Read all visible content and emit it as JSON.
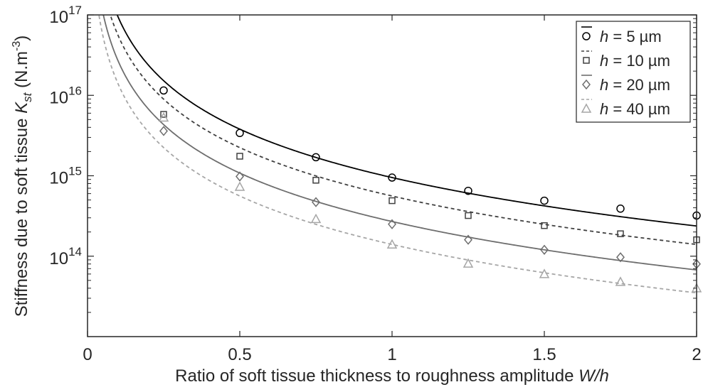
{
  "chart_data": {
    "type": "scatter",
    "xlabel_main": "Ratio of soft tissue thickness to roughness amplitude ",
    "xlabel_italic": "W/h",
    "ylabel_main": "Stiffness due to soft tissue ",
    "ylabel_symbol": "K",
    "ylabel_subscript": "st",
    "ylabel_unit": " (N.m",
    "ylabel_unit_exp": "-3",
    "ylabel_close": ")",
    "xlim": [
      0,
      2
    ],
    "ylim": [
      10000000000000.0,
      1e+17
    ],
    "yscale": "log",
    "x_ticks": [
      {
        "value": 0,
        "label": "0"
      },
      {
        "value": 0.5,
        "label": "0.5"
      },
      {
        "value": 1,
        "label": "1"
      },
      {
        "value": 1.5,
        "label": "1.5"
      },
      {
        "value": 2,
        "label": "2"
      }
    ],
    "y_ticks": [
      {
        "exp": 14,
        "base": "10",
        "sup": "14"
      },
      {
        "exp": 15,
        "base": "10",
        "sup": "15"
      },
      {
        "exp": 16,
        "base": "10",
        "sup": "16"
      },
      {
        "exp": 17,
        "base": "10",
        "sup": "17"
      }
    ],
    "grid": false,
    "legend_position": "top-right",
    "series": [
      {
        "name_prefix": "h",
        "name_suffix": " = 5 µm",
        "marker": "circle",
        "color": "#000000",
        "line_style": "solid",
        "fit_coefficient": 950000000000000.0,
        "x": [
          0.25,
          0.5,
          0.75,
          1.0,
          1.25,
          1.5,
          1.75,
          2.0
        ],
        "y": [
          1.15e+16,
          3400000000000000.0,
          1700000000000000.0,
          950000000000000.0,
          650000000000000.0,
          490000000000000.0,
          390000000000000.0,
          320000000000000.0
        ]
      },
      {
        "name_prefix": "h",
        "name_suffix": " = 10 µm",
        "marker": "square",
        "color": "#404040",
        "line_style": "dashed",
        "fit_coefficient": 560000000000000.0,
        "x": [
          0.25,
          0.5,
          0.75,
          1.0,
          1.25,
          1.5,
          1.75,
          2.0
        ],
        "y": [
          5800000000000000.0,
          1750000000000000.0,
          880000000000000.0,
          490000000000000.0,
          320000000000000.0,
          240000000000000.0,
          190000000000000.0,
          160000000000000.0
        ]
      },
      {
        "name_prefix": "h",
        "name_suffix": " = 20 µm",
        "marker": "diamond",
        "color": "#6e6e6e",
        "line_style": "solid",
        "fit_coefficient": 270000000000000.0,
        "x": [
          0.25,
          0.5,
          0.75,
          1.0,
          1.25,
          1.5,
          1.75,
          2.0
        ],
        "y": [
          3600000000000000.0,
          980000000000000.0,
          470000000000000.0,
          250000000000000.0,
          160000000000000.0,
          120000000000000.0,
          97000000000000.0,
          80000000000000.0
        ]
      },
      {
        "name_prefix": "h",
        "name_suffix": " = 40 µm",
        "marker": "triangle",
        "color": "#a6a6a6",
        "line_style": "dashed",
        "fit_coefficient": 140000000000000.0,
        "x": [
          0.25,
          0.5,
          0.75,
          1.0,
          1.25,
          1.5,
          1.75,
          2.0
        ],
        "y": [
          5300000000000000.0,
          730000000000000.0,
          290000000000000.0,
          140000000000000.0,
          81000000000000.0,
          60000000000000.0,
          48000000000000.0,
          40000000000000.0
        ]
      }
    ]
  }
}
